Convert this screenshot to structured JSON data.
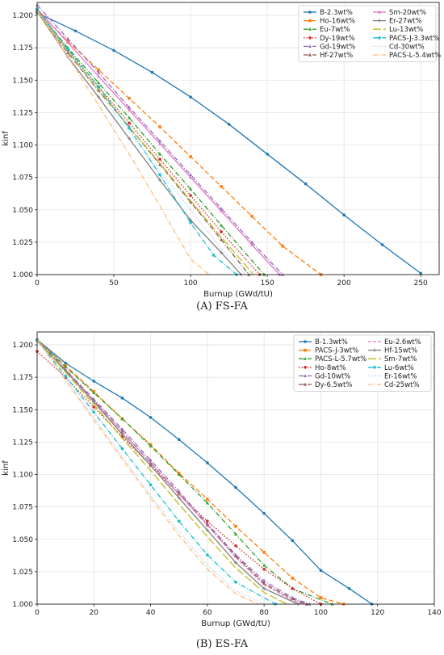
{
  "captions": {
    "a": "(A)  FS-FA",
    "b": "(B)  ES-FA"
  },
  "chart_data": [
    {
      "type": "line",
      "panel": "A",
      "xlabel": "Burnup (GWd/tU)",
      "ylabel": "kinf",
      "xlim": [
        0,
        262
      ],
      "ylim": [
        1.0,
        1.21
      ],
      "xticks": [
        0,
        50,
        100,
        150,
        200,
        250
      ],
      "yticks": [
        1.0,
        1.025,
        1.05,
        1.075,
        1.1,
        1.125,
        1.15,
        1.175,
        1.2
      ],
      "ytick_labels": [
        "1.000",
        "1.025",
        "1.050",
        "1.075",
        "1.100",
        "1.125",
        "1.150",
        "1.175",
        "1.200"
      ],
      "grid": true,
      "legend_position": "top-right",
      "series": [
        {
          "name": "B-2.3wt%",
          "color": "#1f77b4",
          "dash": "",
          "marker": "circle",
          "x": [
            0,
            25,
            50,
            75,
            100,
            125,
            150,
            175,
            200,
            225,
            250
          ],
          "y": [
            1.202,
            1.188,
            1.173,
            1.156,
            1.137,
            1.116,
            1.093,
            1.07,
            1.046,
            1.023,
            1.001
          ]
        },
        {
          "name": "Ho-16wt%",
          "color": "#ff7f0e",
          "dash": "6,3",
          "marker": "square",
          "x": [
            0,
            20,
            40,
            60,
            80,
            100,
            120,
            140,
            160,
            185
          ],
          "y": [
            1.204,
            1.18,
            1.158,
            1.136,
            1.114,
            1.091,
            1.068,
            1.045,
            1.022,
            1.0
          ]
        },
        {
          "name": "Eu-7wt%",
          "color": "#2ca02c",
          "dash": "6,2,1,2",
          "marker": "triangle",
          "x": [
            0,
            20,
            40,
            60,
            80,
            100,
            120,
            148
          ],
          "y": [
            1.204,
            1.175,
            1.148,
            1.121,
            1.093,
            1.066,
            1.038,
            1.0
          ]
        },
        {
          "name": "Dy-19wt%",
          "color": "#d62728",
          "dash": "1.5,2",
          "marker": "circle",
          "x": [
            0,
            20,
            40,
            60,
            80,
            100,
            120,
            145
          ],
          "y": [
            1.204,
            1.173,
            1.145,
            1.117,
            1.089,
            1.061,
            1.033,
            1.0
          ]
        },
        {
          "name": "Gd-19wt%",
          "color": "#9467bd",
          "dash": "6,2,1,2",
          "marker": "triangle",
          "x": [
            0,
            20,
            40,
            60,
            80,
            100,
            120,
            140,
            160
          ],
          "y": [
            1.208,
            1.182,
            1.156,
            1.129,
            1.103,
            1.077,
            1.051,
            1.025,
            1.0
          ]
        },
        {
          "name": "Hf-27wt%",
          "color": "#8c564b",
          "dash": "6,2,1,2",
          "marker": "triangle",
          "x": [
            0,
            20,
            40,
            60,
            80,
            100,
            120,
            138
          ],
          "y": [
            1.203,
            1.171,
            1.142,
            1.114,
            1.085,
            1.056,
            1.027,
            1.0
          ]
        },
        {
          "name": "Sm-20wt%",
          "color": "#e377c2",
          "dash": "",
          "marker": "triangle",
          "x": [
            0,
            20,
            40,
            60,
            80,
            100,
            120,
            140,
            158
          ],
          "y": [
            1.205,
            1.179,
            1.153,
            1.127,
            1.101,
            1.075,
            1.049,
            1.023,
            1.0
          ]
        },
        {
          "name": "Er-27wt%",
          "color": "#7f7f7f",
          "dash": "",
          "marker": "plus",
          "x": [
            0,
            20,
            40,
            60,
            80,
            100,
            120,
            133
          ],
          "y": [
            1.203,
            1.168,
            1.137,
            1.105,
            1.073,
            1.042,
            1.017,
            1.0
          ]
        },
        {
          "name": "Lu-13wt%",
          "color": "#bcbd22",
          "dash": "10,3",
          "marker": "none",
          "x": [
            0,
            20,
            40,
            60,
            80,
            100,
            120,
            141
          ],
          "y": [
            1.203,
            1.172,
            1.143,
            1.114,
            1.086,
            1.057,
            1.029,
            1.0
          ]
        },
        {
          "name": "PACS-J-3.3wt%",
          "color": "#17becf",
          "dash": "6,2,1,2",
          "marker": "circle",
          "x": [
            0,
            20,
            40,
            60,
            80,
            100,
            115,
            130
          ],
          "y": [
            1.205,
            1.174,
            1.145,
            1.113,
            1.077,
            1.04,
            1.015,
            1.0
          ]
        },
        {
          "name": "Cd-30wt%",
          "color": "#aec7e8",
          "dash": "1,2",
          "marker": "none",
          "x": [
            0,
            20,
            40,
            60,
            80,
            100,
            120,
            136
          ],
          "y": [
            1.204,
            1.172,
            1.141,
            1.11,
            1.08,
            1.05,
            1.02,
            1.0
          ]
        },
        {
          "name": "PACS-L-5.4wt%",
          "color": "#ffbb78",
          "dash": "6,2,1,2",
          "marker": "none",
          "x": [
            0,
            20,
            40,
            60,
            80,
            100,
            112
          ],
          "y": [
            1.204,
            1.168,
            1.131,
            1.093,
            1.053,
            1.012,
            1.0
          ]
        }
      ]
    },
    {
      "type": "line",
      "panel": "B",
      "xlabel": "Burnup (GWd/tU)",
      "ylabel": "kinf",
      "xlim": [
        0,
        140
      ],
      "ylim": [
        1.0,
        1.21
      ],
      "xticks": [
        0,
        20,
        40,
        60,
        80,
        100,
        120,
        140
      ],
      "yticks": [
        1.0,
        1.025,
        1.05,
        1.075,
        1.1,
        1.125,
        1.15,
        1.175,
        1.2
      ],
      "ytick_labels": [
        "1.000",
        "1.025",
        "1.050",
        "1.075",
        "1.100",
        "1.125",
        "1.150",
        "1.175",
        "1.200"
      ],
      "grid": true,
      "legend_position": "top-right",
      "series": [
        {
          "name": "B-1.3wt%",
          "color": "#1f77b4",
          "dash": "",
          "marker": "circle",
          "x": [
            0,
            10,
            20,
            30,
            40,
            50,
            60,
            70,
            80,
            90,
            100,
            110,
            118
          ],
          "y": [
            1.204,
            1.186,
            1.172,
            1.159,
            1.144,
            1.127,
            1.109,
            1.09,
            1.07,
            1.049,
            1.026,
            1.012,
            1.0
          ]
        },
        {
          "name": "PACS-J-3wt%",
          "color": "#ff7f0e",
          "dash": "6,3",
          "marker": "square",
          "x": [
            0,
            10,
            20,
            30,
            40,
            50,
            60,
            70,
            80,
            90,
            100,
            108
          ],
          "y": [
            1.204,
            1.184,
            1.164,
            1.143,
            1.123,
            1.101,
            1.081,
            1.06,
            1.04,
            1.02,
            1.005,
            1.0
          ]
        },
        {
          "name": "PACS-L-5.7wt%",
          "color": "#2ca02c",
          "dash": "6,2,1,2",
          "marker": "triangle",
          "x": [
            0,
            10,
            20,
            30,
            40,
            50,
            60,
            70,
            80,
            90,
            104
          ],
          "y": [
            1.204,
            1.183,
            1.163,
            1.143,
            1.122,
            1.1,
            1.078,
            1.054,
            1.03,
            1.012,
            1.0
          ]
        },
        {
          "name": "Ho-8wt%",
          "color": "#d62728",
          "dash": "1.5,2",
          "marker": "circle",
          "x": [
            0,
            10,
            20,
            30,
            40,
            50,
            60,
            70,
            80,
            90,
            100
          ],
          "y": [
            1.195,
            1.175,
            1.152,
            1.129,
            1.107,
            1.085,
            1.064,
            1.045,
            1.027,
            1.012,
            1.0
          ]
        },
        {
          "name": "Gd-10wt%",
          "color": "#9467bd",
          "dash": "6,2,1,2",
          "marker": "triangle",
          "x": [
            0,
            10,
            20,
            30,
            40,
            50,
            60,
            70,
            80,
            90,
            96
          ],
          "y": [
            1.204,
            1.181,
            1.158,
            1.135,
            1.111,
            1.087,
            1.062,
            1.038,
            1.018,
            1.005,
            1.0
          ]
        },
        {
          "name": "Dy-6.5wt%",
          "color": "#8c564b",
          "dash": "6,2,1,2",
          "marker": "triangle",
          "x": [
            0,
            10,
            20,
            30,
            40,
            50,
            60,
            70,
            80,
            90,
            95
          ],
          "y": [
            1.204,
            1.181,
            1.157,
            1.133,
            1.109,
            1.085,
            1.061,
            1.037,
            1.016,
            1.004,
            1.0
          ]
        },
        {
          "name": "Eu-2.6wt%",
          "color": "#e377c2",
          "dash": "4,2",
          "marker": "none",
          "x": [
            0,
            10,
            20,
            30,
            40,
            50,
            60,
            70,
            80,
            90,
            94
          ],
          "y": [
            1.204,
            1.181,
            1.157,
            1.133,
            1.109,
            1.085,
            1.061,
            1.036,
            1.015,
            1.003,
            1.0
          ]
        },
        {
          "name": "Hf-15wt%",
          "color": "#7f7f7f",
          "dash": "",
          "marker": "plus",
          "x": [
            0,
            10,
            20,
            30,
            40,
            50,
            60,
            70,
            80,
            92
          ],
          "y": [
            1.203,
            1.18,
            1.156,
            1.131,
            1.107,
            1.082,
            1.057,
            1.032,
            1.012,
            1.0
          ]
        },
        {
          "name": "Sm-7wt%",
          "color": "#bcbd22",
          "dash": "10,3",
          "marker": "none",
          "x": [
            0,
            10,
            20,
            30,
            40,
            50,
            60,
            70,
            80,
            88
          ],
          "y": [
            1.204,
            1.179,
            1.154,
            1.128,
            1.103,
            1.077,
            1.052,
            1.028,
            1.009,
            1.0
          ]
        },
        {
          "name": "Lu-6wt%",
          "color": "#17becf",
          "dash": "6,2,1,2",
          "marker": "circle",
          "x": [
            0,
            10,
            20,
            30,
            40,
            50,
            60,
            70,
            84
          ],
          "y": [
            1.204,
            1.176,
            1.148,
            1.12,
            1.092,
            1.064,
            1.038,
            1.017,
            1.0
          ]
        },
        {
          "name": "Er-16wt%",
          "color": "#aec7e8",
          "dash": "1,2",
          "marker": "none",
          "x": [
            0,
            10,
            20,
            30,
            40,
            50,
            60,
            70,
            80
          ],
          "y": [
            1.204,
            1.174,
            1.144,
            1.114,
            1.084,
            1.056,
            1.03,
            1.01,
            1.0
          ]
        },
        {
          "name": "Cd-25wt%",
          "color": "#ffbb78",
          "dash": "6,2,1,2",
          "marker": "none",
          "x": [
            0,
            10,
            20,
            30,
            40,
            50,
            60,
            70,
            78
          ],
          "y": [
            1.204,
            1.173,
            1.142,
            1.112,
            1.082,
            1.053,
            1.027,
            1.008,
            1.0
          ]
        }
      ]
    }
  ]
}
